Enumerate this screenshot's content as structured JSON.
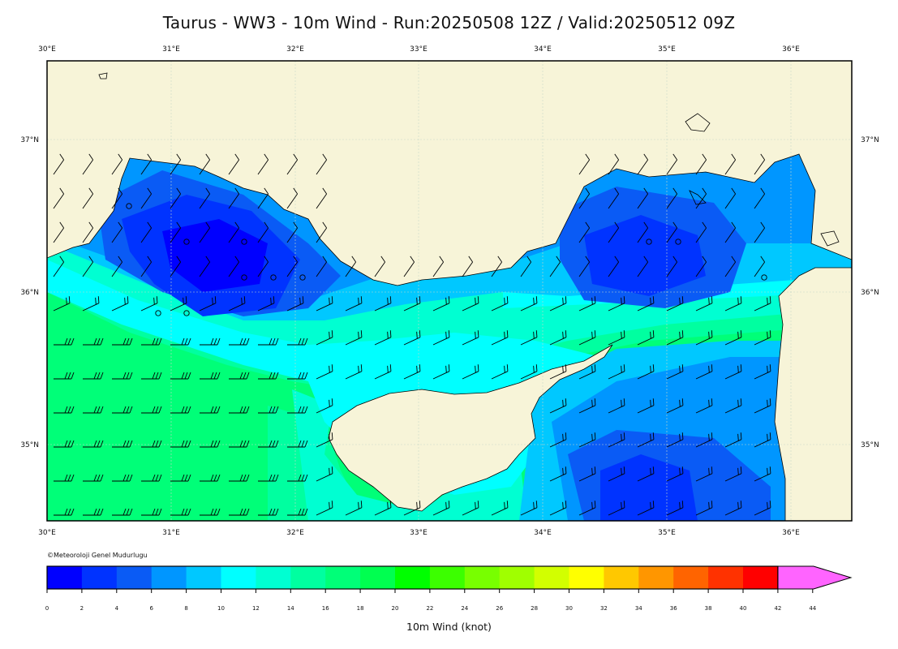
{
  "title": "Taurus - WW3 - 10m Wind - Run:20250508 12Z / Valid:20250512 09Z",
  "credit": "©Meteoroloji Genel Mudurlugu",
  "map": {
    "lon_labels": [
      "30°E",
      "31°E",
      "32°E",
      "33°E",
      "34°E",
      "35°E",
      "36°E"
    ],
    "lat_labels": [
      "37°N",
      "36°N",
      "35°N"
    ],
    "land_color": "#f7f4d8",
    "frame_color": "#000000"
  },
  "colorbar": {
    "label": "10m Wind (knot)",
    "ticks": [
      "0",
      "2",
      "4",
      "6",
      "8",
      "10",
      "12",
      "14",
      "16",
      "18",
      "20",
      "22",
      "24",
      "26",
      "28",
      "30",
      "32",
      "34",
      "36",
      "38",
      "40",
      "42",
      "44"
    ],
    "colors": [
      "#0000ff",
      "#0033ff",
      "#0a5bf5",
      "#0096ff",
      "#00c8ff",
      "#00ffff",
      "#00ffd2",
      "#00ffa0",
      "#00ff78",
      "#00ff50",
      "#00ff00",
      "#3cff00",
      "#78ff00",
      "#a0ff00",
      "#d2ff00",
      "#ffff00",
      "#ffc800",
      "#ff9600",
      "#ff6400",
      "#ff3200",
      "#ff0000",
      "#ff64ff"
    ]
  }
}
